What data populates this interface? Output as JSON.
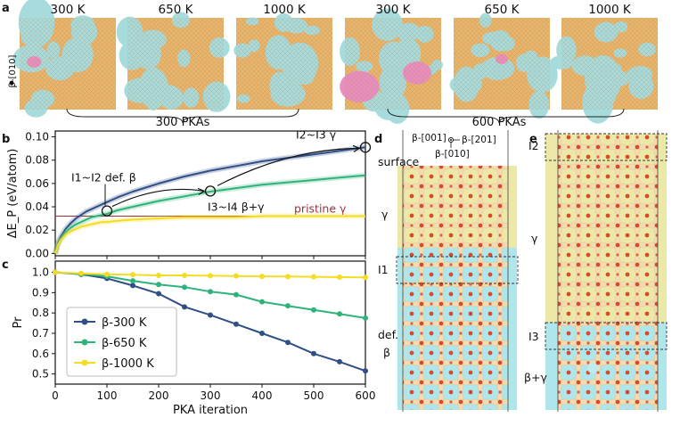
{
  "panel_letters": {
    "a": "a",
    "b": "b",
    "c": "c",
    "d": "d",
    "e": "e"
  },
  "snapshots": {
    "temps": [
      "300 K",
      "650 K",
      "1000 K",
      "300 K",
      "650 K",
      "1000 K"
    ],
    "orientation": "β-[010]",
    "groups": [
      "300 PKAs",
      "600 PKAs"
    ]
  },
  "colors": {
    "beta300": "#2f4f86",
    "beta650": "#2fb37a",
    "beta1000": "#f4dc25",
    "pristine": "#a0303e",
    "orange": "#e8b56c",
    "cyan": "#a8dcdc",
    "pink": "#e88fbf",
    "gamma_band": "#ece8a8",
    "beta_band": "#aee6ec",
    "atom_red": "#d84a2c",
    "atom_cream": "#f5dcb0"
  },
  "chart_data": [
    {
      "type": "line",
      "panel": "b",
      "ylabel": "ΔE_P (eV/atom)",
      "xlim": [
        0,
        600
      ],
      "ylim": [
        -0.002,
        0.105
      ],
      "yticks": [
        "0.00",
        "0.02",
        "0.04",
        "0.06",
        "0.08",
        "0.10"
      ],
      "x": [
        0,
        5,
        10,
        20,
        30,
        40,
        50,
        60,
        70,
        80,
        90,
        100,
        120,
        150,
        200,
        250,
        300,
        350,
        400,
        450,
        500,
        550,
        600
      ],
      "series": [
        {
          "name": "β-300 K",
          "values": [
            0.0,
            0.009,
            0.014,
            0.021,
            0.026,
            0.03,
            0.033,
            0.036,
            0.038,
            0.04,
            0.042,
            0.044,
            0.048,
            0.053,
            0.06,
            0.066,
            0.071,
            0.075,
            0.079,
            0.082,
            0.085,
            0.088,
            0.091
          ]
        },
        {
          "name": "β-650 K",
          "values": [
            0.0,
            0.008,
            0.012,
            0.018,
            0.022,
            0.025,
            0.027,
            0.029,
            0.031,
            0.032,
            0.033,
            0.034,
            0.037,
            0.04,
            0.045,
            0.049,
            0.053,
            0.056,
            0.059,
            0.061,
            0.063,
            0.065,
            0.067
          ]
        },
        {
          "name": "β-1000 K",
          "values": [
            0.0,
            0.007,
            0.011,
            0.016,
            0.019,
            0.021,
            0.023,
            0.024,
            0.025,
            0.026,
            0.027,
            0.027,
            0.028,
            0.029,
            0.03,
            0.031,
            0.031,
            0.031,
            0.032,
            0.032,
            0.032,
            0.032,
            0.032
          ]
        }
      ],
      "reference_line": {
        "label": "pristine γ",
        "value": 0.032
      },
      "annotations": [
        {
          "label": "I1~I2 def. β",
          "x": 100,
          "y": 0.0365
        },
        {
          "label": "I3~I4 β+γ",
          "x": 300,
          "y": 0.0535
        },
        {
          "label": "I2~I3 γ",
          "x": 600,
          "y": 0.091
        }
      ]
    },
    {
      "type": "line",
      "panel": "c",
      "ylabel": "Pr",
      "xlabel": "PKA iteration",
      "xlim": [
        0,
        600
      ],
      "ylim": [
        0.45,
        1.055
      ],
      "xticks": [
        "0",
        "100",
        "200",
        "300",
        "400",
        "500",
        "600"
      ],
      "yticks": [
        "0.5",
        "0.6",
        "0.7",
        "0.8",
        "0.9",
        "1.0"
      ],
      "x": [
        0,
        50,
        100,
        150,
        200,
        250,
        300,
        350,
        400,
        450,
        500,
        550,
        600
      ],
      "series": [
        {
          "name": "β-300 K",
          "values": [
            1.0,
            0.99,
            0.97,
            0.935,
            0.895,
            0.83,
            0.79,
            0.745,
            0.7,
            0.655,
            0.6,
            0.56,
            0.515
          ]
        },
        {
          "name": "β-650 K",
          "values": [
            1.0,
            0.992,
            0.98,
            0.958,
            0.94,
            0.927,
            0.905,
            0.89,
            0.855,
            0.835,
            0.815,
            0.795,
            0.775
          ]
        },
        {
          "name": "β-1000 K",
          "values": [
            1.0,
            0.995,
            0.99,
            0.988,
            0.985,
            0.985,
            0.983,
            0.982,
            0.98,
            0.979,
            0.978,
            0.976,
            0.975
          ]
        }
      ],
      "legend_position": "bottom-left"
    }
  ],
  "panel_d": {
    "axes": {
      "a": "β-[001]",
      "b": "β-[201]",
      "c": "β-[010]"
    },
    "surface": "surface",
    "gamma": "γ",
    "i1": "I1",
    "def": "def.",
    "beta": "β"
  },
  "panel_e": {
    "i2": "I2",
    "gamma": "γ",
    "i3": "I3",
    "beta_gamma": "β+γ"
  }
}
